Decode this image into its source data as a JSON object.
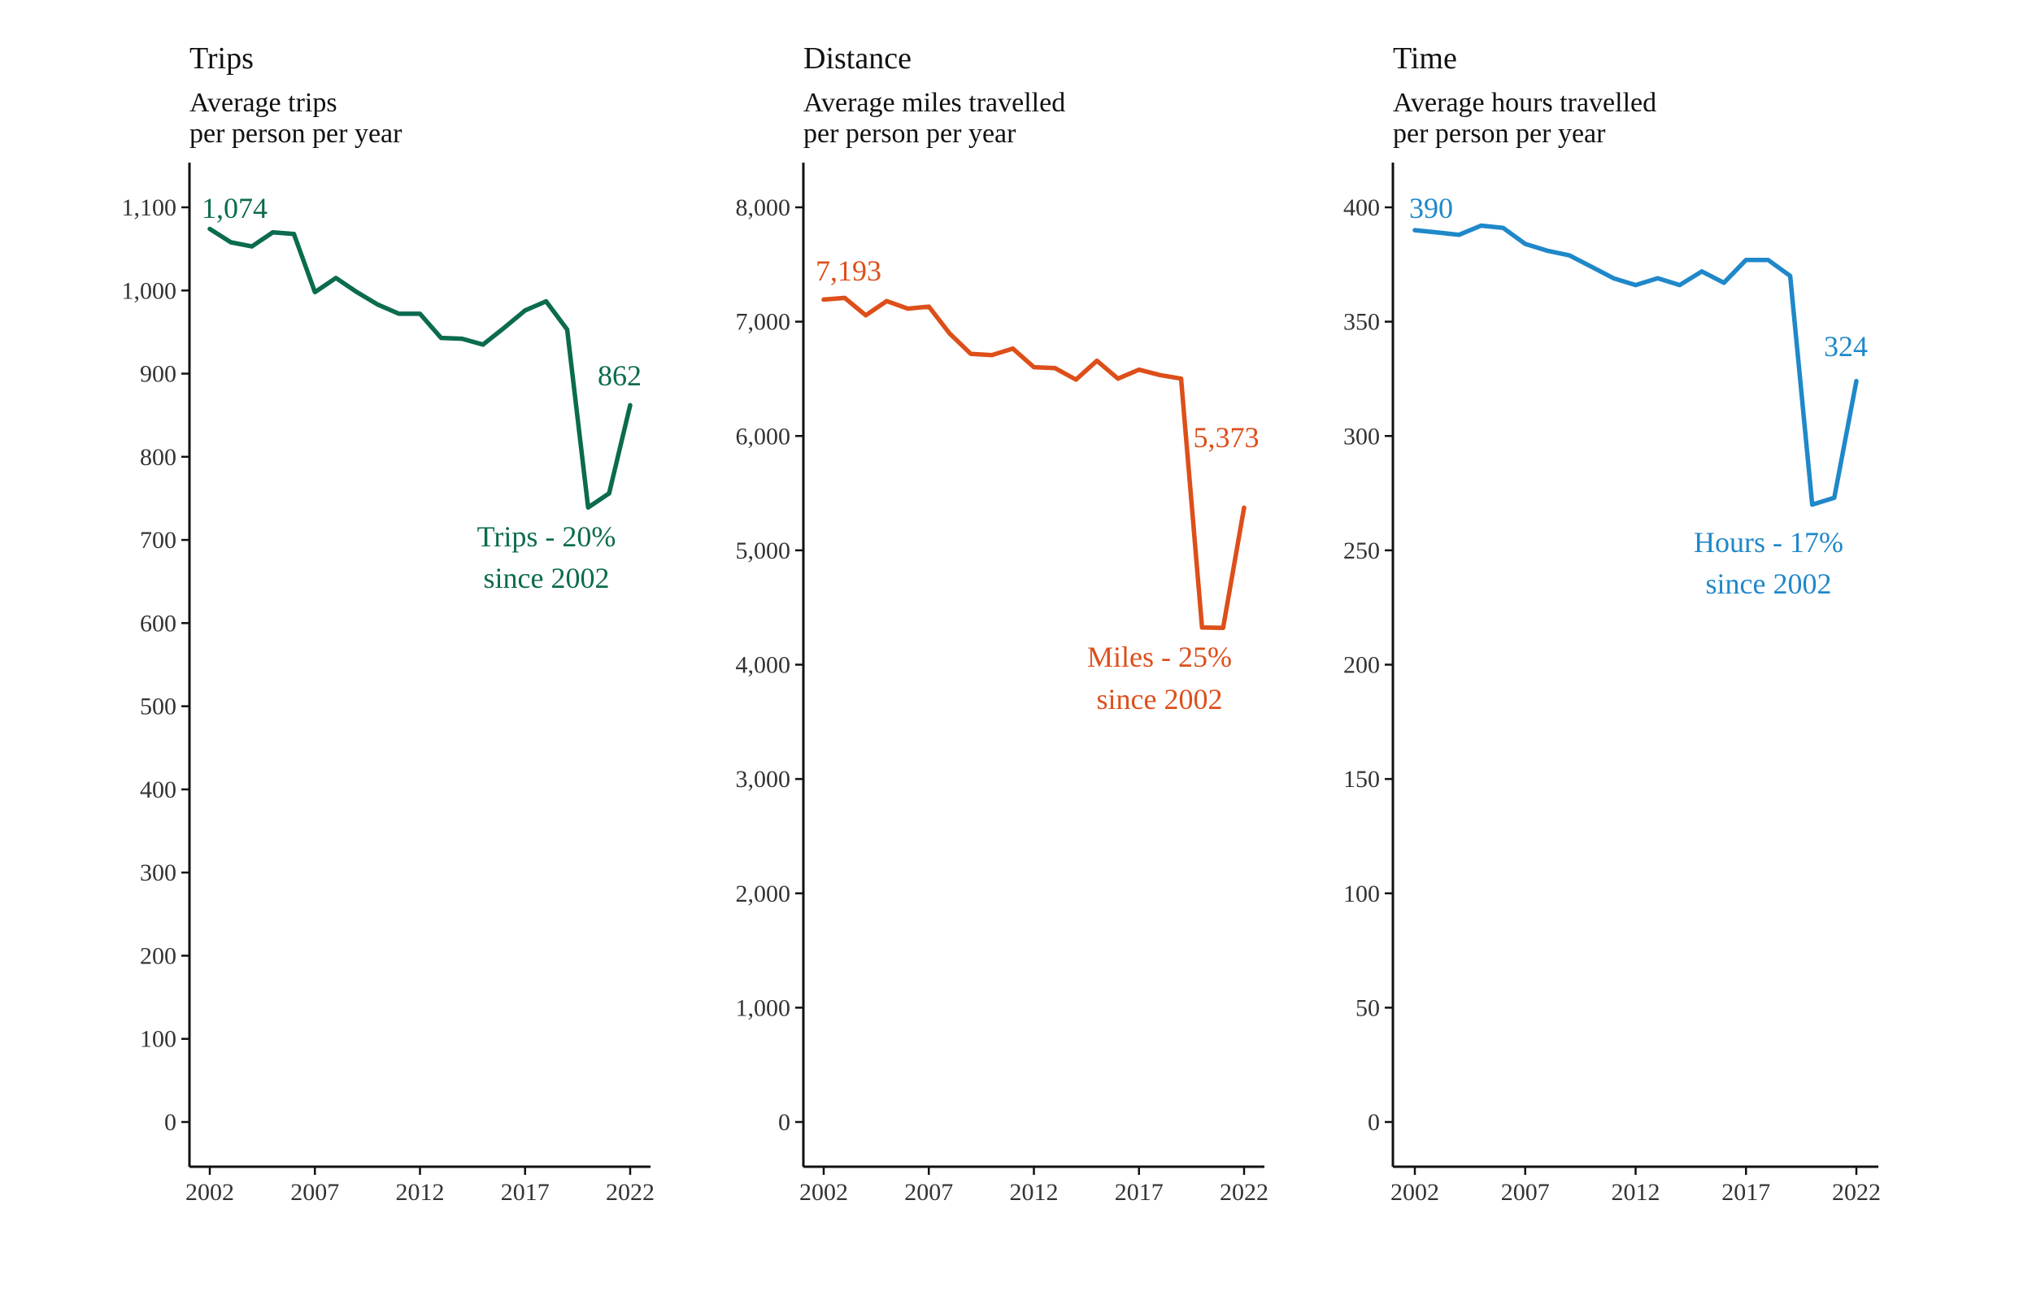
{
  "chart_data": [
    {
      "type": "line",
      "title": "Trips",
      "subtitle_lines": [
        "Average trips",
        "per person per year"
      ],
      "color": "#0b6b4e",
      "x": [
        2002,
        2003,
        2004,
        2005,
        2006,
        2007,
        2008,
        2009,
        2010,
        2011,
        2012,
        2013,
        2014,
        2015,
        2016,
        2017,
        2018,
        2019,
        2020,
        2021,
        2022
      ],
      "values": [
        1074,
        1058,
        1053,
        1070,
        1068,
        998,
        1015,
        998,
        983,
        972,
        972,
        943,
        942,
        935,
        955,
        976,
        987,
        953,
        739,
        756,
        862
      ],
      "ylim": [
        0,
        1100
      ],
      "yticks": [
        0,
        100,
        200,
        300,
        400,
        500,
        600,
        700,
        800,
        900,
        1000,
        1100
      ],
      "ytick_labels": [
        "0",
        "100",
        "200",
        "300",
        "400",
        "500",
        "600",
        "700",
        "800",
        "900",
        "1,000",
        "1,100"
      ],
      "xticks": [
        2002,
        2007,
        2012,
        2017,
        2022
      ],
      "xtick_labels": [
        "2002",
        "2007",
        "2012",
        "2017",
        "2022"
      ],
      "start_label": "1,074",
      "end_label": "862",
      "annotation_lines": [
        "Trips - 20%",
        "since 2002"
      ]
    },
    {
      "type": "line",
      "title": "Distance",
      "subtitle_lines": [
        "Average miles travelled",
        "per person per year"
      ],
      "color": "#dd4f1a",
      "x": [
        2002,
        2003,
        2004,
        2005,
        2006,
        2007,
        2008,
        2009,
        2010,
        2011,
        2012,
        2013,
        2014,
        2015,
        2016,
        2017,
        2018,
        2019,
        2020,
        2021,
        2022
      ],
      "values": [
        7193,
        7208,
        7056,
        7180,
        7114,
        7132,
        6895,
        6718,
        6708,
        6764,
        6602,
        6594,
        6493,
        6658,
        6502,
        6580,
        6533,
        6502,
        4325,
        4322,
        5373
      ],
      "ylim": [
        0,
        8000
      ],
      "yticks": [
        0,
        1000,
        2000,
        3000,
        4000,
        5000,
        6000,
        7000,
        8000
      ],
      "ytick_labels": [
        "0",
        "1,000",
        "2,000",
        "3,000",
        "4,000",
        "5,000",
        "6,000",
        "7,000",
        "8,000"
      ],
      "xticks": [
        2002,
        2007,
        2012,
        2017,
        2022
      ],
      "xtick_labels": [
        "2002",
        "2007",
        "2012",
        "2017",
        "2022"
      ],
      "start_label": "7,193",
      "end_label": "5,373",
      "annotation_lines": [
        "Miles - 25%",
        "since 2002"
      ]
    },
    {
      "type": "line",
      "title": "Time",
      "subtitle_lines": [
        "Average hours travelled",
        "per person per year"
      ],
      "color": "#1f88c9",
      "x": [
        2002,
        2003,
        2004,
        2005,
        2006,
        2007,
        2008,
        2009,
        2010,
        2011,
        2012,
        2013,
        2014,
        2015,
        2016,
        2017,
        2018,
        2019,
        2020,
        2021,
        2022
      ],
      "values": [
        390,
        389,
        388,
        392,
        391,
        384,
        381,
        379,
        374,
        369,
        366,
        369,
        366,
        372,
        367,
        377,
        377,
        370,
        270,
        273,
        324
      ],
      "ylim": [
        0,
        400
      ],
      "yticks": [
        0,
        50,
        100,
        150,
        200,
        250,
        300,
        350,
        400
      ],
      "ytick_labels": [
        "0",
        "50",
        "100",
        "150",
        "200",
        "250",
        "300",
        "350",
        "400"
      ],
      "xticks": [
        2002,
        2007,
        2012,
        2017,
        2022
      ],
      "xtick_labels": [
        "2002",
        "2007",
        "2012",
        "2017",
        "2022"
      ],
      "start_label": "390",
      "end_label": "324",
      "annotation_lines": [
        "Hours - 17%",
        "since 2002"
      ]
    }
  ]
}
